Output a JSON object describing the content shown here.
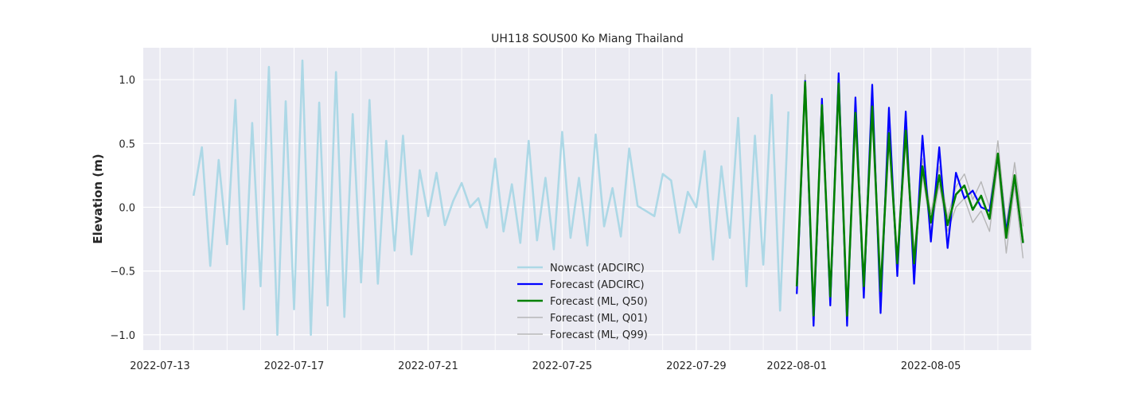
{
  "chart_data": {
    "type": "line",
    "title": "UH118 SOUS00 Ko Miang Thailand",
    "xlabel": "",
    "ylabel": "Elevation (m)",
    "xlim": [
      "2022-07-12T12:00",
      "2022-08-08T00:00"
    ],
    "ylim": [
      -1.12,
      1.25
    ],
    "grid": true,
    "legend_position": "lower-center",
    "x_ticks": [
      "2022-07-13",
      "2022-07-17",
      "2022-07-21",
      "2022-07-25",
      "2022-07-29",
      "2022-08-01",
      "2022-08-05"
    ],
    "y_ticks": [
      -1.0,
      -0.5,
      0.0,
      0.5,
      1.0
    ],
    "y_tick_labels": [
      "−1.0",
      "−0.5",
      "0.0",
      "0.5",
      "1.0"
    ],
    "series": [
      {
        "name": "Nowcast (ADCIRC)",
        "color": "#add8e6",
        "points": [
          [
            "2022-07-14T00:00",
            0.09
          ],
          [
            "2022-07-14T06:00",
            0.47
          ],
          [
            "2022-07-14T12:00",
            -0.46
          ],
          [
            "2022-07-14T18:00",
            0.37
          ],
          [
            "2022-07-15T00:00",
            -0.29
          ],
          [
            "2022-07-15T06:00",
            0.84
          ],
          [
            "2022-07-15T12:00",
            -0.8
          ],
          [
            "2022-07-15T18:00",
            0.66
          ],
          [
            "2022-07-16T00:00",
            -0.62
          ],
          [
            "2022-07-16T06:00",
            1.1
          ],
          [
            "2022-07-16T12:00",
            -1.0
          ],
          [
            "2022-07-16T18:00",
            0.83
          ],
          [
            "2022-07-17T00:00",
            -0.8
          ],
          [
            "2022-07-17T06:00",
            1.15
          ],
          [
            "2022-07-17T12:00",
            -1.0
          ],
          [
            "2022-07-17T18:00",
            0.82
          ],
          [
            "2022-07-18T00:00",
            -0.77
          ],
          [
            "2022-07-18T06:00",
            1.06
          ],
          [
            "2022-07-18T12:00",
            -0.86
          ],
          [
            "2022-07-18T18:00",
            0.73
          ],
          [
            "2022-07-19T00:00",
            -0.59
          ],
          [
            "2022-07-19T06:00",
            0.84
          ],
          [
            "2022-07-19T12:00",
            -0.6
          ],
          [
            "2022-07-19T18:00",
            0.52
          ],
          [
            "2022-07-20T00:00",
            -0.34
          ],
          [
            "2022-07-20T06:00",
            0.56
          ],
          [
            "2022-07-20T12:00",
            -0.37
          ],
          [
            "2022-07-20T18:00",
            0.29
          ],
          [
            "2022-07-21T00:00",
            -0.07
          ],
          [
            "2022-07-21T06:00",
            0.27
          ],
          [
            "2022-07-21T12:00",
            -0.14
          ],
          [
            "2022-07-21T18:00",
            0.05
          ],
          [
            "2022-07-22T00:00",
            0.19
          ],
          [
            "2022-07-22T06:00",
            0.0
          ],
          [
            "2022-07-22T12:00",
            0.07
          ],
          [
            "2022-07-22T18:00",
            -0.16
          ],
          [
            "2022-07-23T00:00",
            0.38
          ],
          [
            "2022-07-23T06:00",
            -0.19
          ],
          [
            "2022-07-23T12:00",
            0.18
          ],
          [
            "2022-07-23T18:00",
            -0.28
          ],
          [
            "2022-07-24T00:00",
            0.52
          ],
          [
            "2022-07-24T06:00",
            -0.26
          ],
          [
            "2022-07-24T12:00",
            0.23
          ],
          [
            "2022-07-24T18:00",
            -0.33
          ],
          [
            "2022-07-25T00:00",
            0.59
          ],
          [
            "2022-07-25T06:00",
            -0.24
          ],
          [
            "2022-07-25T12:00",
            0.23
          ],
          [
            "2022-07-25T18:00",
            -0.3
          ],
          [
            "2022-07-26T00:00",
            0.57
          ],
          [
            "2022-07-26T06:00",
            -0.15
          ],
          [
            "2022-07-26T12:00",
            0.15
          ],
          [
            "2022-07-26T18:00",
            -0.23
          ],
          [
            "2022-07-27T00:00",
            0.46
          ],
          [
            "2022-07-27T06:00",
            0.01
          ],
          [
            "2022-07-27T12:00",
            -0.03
          ],
          [
            "2022-07-27T18:00",
            -0.07
          ],
          [
            "2022-07-28T00:00",
            0.26
          ],
          [
            "2022-07-28T06:00",
            0.21
          ],
          [
            "2022-07-28T12:00",
            -0.2
          ],
          [
            "2022-07-28T18:00",
            0.12
          ],
          [
            "2022-07-29T00:00",
            0.0
          ],
          [
            "2022-07-29T06:00",
            0.44
          ],
          [
            "2022-07-29T12:00",
            -0.41
          ],
          [
            "2022-07-29T18:00",
            0.32
          ],
          [
            "2022-07-30T00:00",
            -0.24
          ],
          [
            "2022-07-30T06:00",
            0.7
          ],
          [
            "2022-07-30T12:00",
            -0.62
          ],
          [
            "2022-07-30T18:00",
            0.56
          ],
          [
            "2022-07-31T00:00",
            -0.45
          ],
          [
            "2022-07-31T06:00",
            0.88
          ],
          [
            "2022-07-31T12:00",
            -0.81
          ],
          [
            "2022-07-31T18:00",
            0.75
          ]
        ]
      },
      {
        "name": "Forecast (ADCIRC)",
        "color": "#0000ff",
        "points": [
          [
            "2022-08-01T00:00",
            -0.68
          ],
          [
            "2022-08-01T06:00",
            0.99
          ],
          [
            "2022-08-01T12:00",
            -0.93
          ],
          [
            "2022-08-01T18:00",
            0.85
          ],
          [
            "2022-08-02T00:00",
            -0.77
          ],
          [
            "2022-08-02T06:00",
            1.05
          ],
          [
            "2022-08-02T12:00",
            -0.93
          ],
          [
            "2022-08-02T18:00",
            0.86
          ],
          [
            "2022-08-03T00:00",
            -0.71
          ],
          [
            "2022-08-03T06:00",
            0.96
          ],
          [
            "2022-08-03T12:00",
            -0.83
          ],
          [
            "2022-08-03T18:00",
            0.78
          ],
          [
            "2022-08-04T00:00",
            -0.54
          ],
          [
            "2022-08-04T06:00",
            0.75
          ],
          [
            "2022-08-04T12:00",
            -0.6
          ],
          [
            "2022-08-04T18:00",
            0.56
          ],
          [
            "2022-08-05T00:00",
            -0.27
          ],
          [
            "2022-08-05T06:00",
            0.47
          ],
          [
            "2022-08-05T12:00",
            -0.32
          ],
          [
            "2022-08-05T18:00",
            0.27
          ],
          [
            "2022-08-06T00:00",
            0.07
          ],
          [
            "2022-08-06T06:00",
            0.13
          ],
          [
            "2022-08-06T12:00",
            0.0
          ],
          [
            "2022-08-06T18:00",
            -0.03
          ],
          [
            "2022-08-07T00:00",
            0.4
          ],
          [
            "2022-08-07T06:00",
            -0.19
          ],
          [
            "2022-08-07T12:00",
            0.24
          ],
          [
            "2022-08-07T18:00",
            -0.28
          ]
        ]
      },
      {
        "name": "Forecast (ML, Q50)",
        "color": "#008000",
        "points": [
          [
            "2022-08-01T00:00",
            -0.62
          ],
          [
            "2022-08-01T06:00",
            0.98
          ],
          [
            "2022-08-01T12:00",
            -0.85
          ],
          [
            "2022-08-01T18:00",
            0.8
          ],
          [
            "2022-08-02T00:00",
            -0.7
          ],
          [
            "2022-08-02T06:00",
            0.97
          ],
          [
            "2022-08-02T12:00",
            -0.85
          ],
          [
            "2022-08-02T18:00",
            0.74
          ],
          [
            "2022-08-03T00:00",
            -0.62
          ],
          [
            "2022-08-03T06:00",
            0.79
          ],
          [
            "2022-08-03T12:00",
            -0.66
          ],
          [
            "2022-08-03T18:00",
            0.58
          ],
          [
            "2022-08-04T00:00",
            -0.44
          ],
          [
            "2022-08-04T06:00",
            0.6
          ],
          [
            "2022-08-04T12:00",
            -0.44
          ],
          [
            "2022-08-04T18:00",
            0.32
          ],
          [
            "2022-08-05T00:00",
            -0.12
          ],
          [
            "2022-08-05T06:00",
            0.25
          ],
          [
            "2022-08-05T12:00",
            -0.14
          ],
          [
            "2022-08-05T18:00",
            0.1
          ],
          [
            "2022-08-06T00:00",
            0.17
          ],
          [
            "2022-08-06T06:00",
            -0.02
          ],
          [
            "2022-08-06T12:00",
            0.09
          ],
          [
            "2022-08-06T18:00",
            -0.09
          ],
          [
            "2022-08-07T00:00",
            0.42
          ],
          [
            "2022-08-07T06:00",
            -0.24
          ],
          [
            "2022-08-07T12:00",
            0.25
          ],
          [
            "2022-08-07T18:00",
            -0.28
          ]
        ]
      },
      {
        "name": "Forecast (ML, Q01)",
        "color": "#b0b0b0",
        "points": [
          [
            "2022-08-01T00:00",
            -0.66
          ],
          [
            "2022-08-01T06:00",
            0.95
          ],
          [
            "2022-08-01T12:00",
            -0.91
          ],
          [
            "2022-08-01T18:00",
            0.76
          ],
          [
            "2022-08-02T00:00",
            -0.75
          ],
          [
            "2022-08-02T06:00",
            0.93
          ],
          [
            "2022-08-02T12:00",
            -0.9
          ],
          [
            "2022-08-02T18:00",
            0.7
          ],
          [
            "2022-08-03T00:00",
            -0.68
          ],
          [
            "2022-08-03T06:00",
            0.74
          ],
          [
            "2022-08-03T12:00",
            -0.7
          ],
          [
            "2022-08-03T18:00",
            0.53
          ],
          [
            "2022-08-04T00:00",
            -0.48
          ],
          [
            "2022-08-04T06:00",
            0.53
          ],
          [
            "2022-08-04T12:00",
            -0.49
          ],
          [
            "2022-08-04T18:00",
            0.26
          ],
          [
            "2022-08-05T00:00",
            -0.18
          ],
          [
            "2022-08-05T06:00",
            0.18
          ],
          [
            "2022-08-05T12:00",
            -0.19
          ],
          [
            "2022-08-05T18:00",
            0.0
          ],
          [
            "2022-08-06T00:00",
            0.07
          ],
          [
            "2022-08-06T06:00",
            -0.12
          ],
          [
            "2022-08-06T12:00",
            -0.03
          ],
          [
            "2022-08-06T18:00",
            -0.19
          ],
          [
            "2022-08-07T00:00",
            0.34
          ],
          [
            "2022-08-07T06:00",
            -0.36
          ],
          [
            "2022-08-07T12:00",
            0.17
          ],
          [
            "2022-08-07T18:00",
            -0.4
          ]
        ]
      },
      {
        "name": "Forecast (ML, Q99)",
        "color": "#b0b0b0",
        "points": [
          [
            "2022-08-01T00:00",
            -0.58
          ],
          [
            "2022-08-01T06:00",
            1.04
          ],
          [
            "2022-08-01T12:00",
            -0.8
          ],
          [
            "2022-08-01T18:00",
            0.84
          ],
          [
            "2022-08-02T00:00",
            -0.65
          ],
          [
            "2022-08-02T06:00",
            1.01
          ],
          [
            "2022-08-02T12:00",
            -0.8
          ],
          [
            "2022-08-02T18:00",
            0.79
          ],
          [
            "2022-08-03T00:00",
            -0.56
          ],
          [
            "2022-08-03T06:00",
            0.84
          ],
          [
            "2022-08-03T12:00",
            -0.6
          ],
          [
            "2022-08-03T18:00",
            0.64
          ],
          [
            "2022-08-04T00:00",
            -0.38
          ],
          [
            "2022-08-04T06:00",
            0.67
          ],
          [
            "2022-08-04T12:00",
            -0.37
          ],
          [
            "2022-08-04T18:00",
            0.38
          ],
          [
            "2022-08-05T00:00",
            -0.05
          ],
          [
            "2022-08-05T06:00",
            0.32
          ],
          [
            "2022-08-05T12:00",
            -0.08
          ],
          [
            "2022-08-05T18:00",
            0.16
          ],
          [
            "2022-08-06T00:00",
            0.26
          ],
          [
            "2022-08-06T06:00",
            0.06
          ],
          [
            "2022-08-06T12:00",
            0.2
          ],
          [
            "2022-08-06T18:00",
            0.0
          ],
          [
            "2022-08-07T00:00",
            0.52
          ],
          [
            "2022-08-07T06:00",
            -0.14
          ],
          [
            "2022-08-07T12:00",
            0.35
          ],
          [
            "2022-08-07T18:00",
            -0.15
          ]
        ]
      }
    ]
  }
}
